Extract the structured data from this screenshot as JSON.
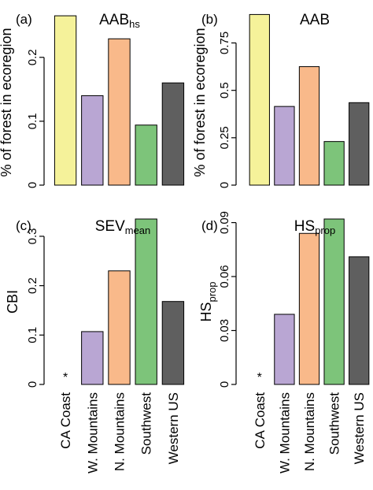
{
  "categories": [
    "CA Coast",
    "W. Mountains",
    "N. Mountains",
    "Southwest",
    "Western US"
  ],
  "colors": [
    "#f5f29a",
    "#b9a6d3",
    "#f9b98a",
    "#7dc47a",
    "#5f5f5f"
  ],
  "chart_data": [
    {
      "type": "bar",
      "panel_label": "(a)",
      "title_main": "AAB",
      "title_sub": "hs",
      "ylabel": "% of forest in ecoregion",
      "ylabel_sub": "",
      "ylim": [
        0,
        0.27
      ],
      "yticks": [
        0,
        0.1,
        0.2
      ],
      "ytick_labels": [
        "0",
        "0.1",
        "0.2"
      ],
      "values": [
        0.265,
        0.14,
        0.229,
        0.094,
        0.16
      ],
      "missing_marker": ""
    },
    {
      "type": "bar",
      "panel_label": "(b)",
      "title_main": "AAB",
      "title_sub": "",
      "ylabel": "% of forest in ecoregion",
      "ylabel_sub": "",
      "ylim": [
        0,
        0.91
      ],
      "yticks": [
        0,
        0.25,
        0.5,
        0.75
      ],
      "ytick_labels": [
        "0",
        "0.25",
        "0.5",
        "0.75"
      ],
      "values": [
        0.9,
        0.415,
        0.625,
        0.23,
        0.435
      ],
      "missing_marker": ""
    },
    {
      "type": "bar",
      "panel_label": "(c)",
      "title_main": "SEV",
      "title_sub": "mean",
      "ylabel": "CBI",
      "ylabel_sub": "",
      "ylim": [
        0,
        0.335
      ],
      "yticks": [
        0,
        0.1,
        0.2,
        0.3
      ],
      "ytick_labels": [
        "0",
        "0.1",
        "0.2",
        "0.3"
      ],
      "values": [
        null,
        0.107,
        0.23,
        0.335,
        0.168
      ],
      "missing_marker": "*"
    },
    {
      "type": "bar",
      "panel_label": "(d)",
      "title_main": "HS",
      "title_sub": "prop",
      "ylabel": "HS",
      "ylabel_sub": "prop",
      "ylim": [
        0,
        0.092
      ],
      "yticks": [
        0,
        0.03,
        0.06,
        0.09
      ],
      "ytick_labels": [
        "0",
        "0.03",
        "0.06",
        "0.09"
      ],
      "values": [
        null,
        0.039,
        0.084,
        0.092,
        0.071
      ],
      "missing_marker": "*"
    }
  ]
}
